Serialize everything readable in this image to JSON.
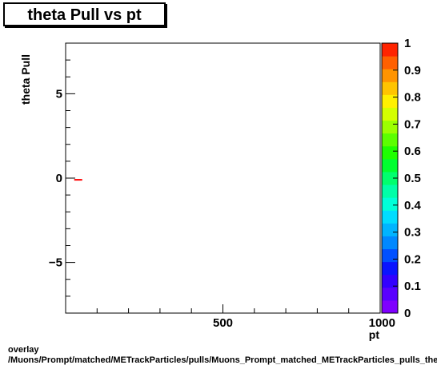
{
  "chart_data": {
    "type": "heatmap",
    "title": "theta Pull vs pt",
    "xlabel": "pt",
    "ylabel": "theta Pull",
    "xlim": [
      0,
      1000
    ],
    "ylim": [
      -8,
      8
    ],
    "x_ticks": [
      {
        "value": 500,
        "label": "500"
      },
      {
        "value": 1000,
        "label": "1000"
      }
    ],
    "y_ticks": [
      {
        "value": 5,
        "label": "5"
      },
      {
        "value": 0,
        "label": "0"
      },
      {
        "value": -5,
        "label": "−5"
      }
    ],
    "colorbar": {
      "range": [
        0,
        1
      ],
      "labels": [
        "0",
        "0.1",
        "0.2",
        "0.3",
        "0.4",
        "0.5",
        "0.6",
        "0.7",
        "0.8",
        "0.9",
        "1"
      ],
      "colors": [
        "#7f00ff",
        "#5a00ff",
        "#3300ff",
        "#0a14ff",
        "#0050ff",
        "#0088ff",
        "#00b4ff",
        "#00dcff",
        "#00ffd8",
        "#00ffa8",
        "#00ff6e",
        "#00ff30",
        "#1eff00",
        "#5cff00",
        "#9cff00",
        "#d4ff00",
        "#fff000",
        "#ffc400",
        "#ff9400",
        "#ff6000",
        "#ff2400"
      ]
    },
    "points": [
      {
        "x": 40,
        "y": -0.1,
        "z": 1.0,
        "color": "#ff0000"
      }
    ]
  },
  "footer": {
    "line1": "overlay",
    "line2": "/Muons/Prompt/matched/METrackParticles/pulls/Muons_Prompt_matched_METrackParticles_pulls_thetaPull_vs_pt"
  }
}
